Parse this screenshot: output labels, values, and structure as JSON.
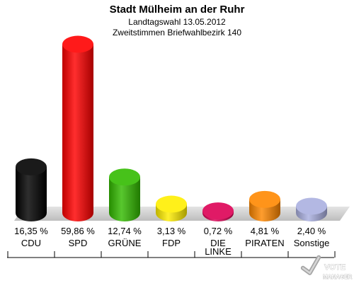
{
  "chart_data": {
    "type": "bar",
    "title": "Stadt Mülheim an der Ruhr",
    "subtitle_1": "Landtagswahl 13.05.2012",
    "subtitle_2": "Zweitstimmen Briefwahlbezirk 140",
    "categories": [
      "CDU",
      "SPD",
      "GRÜNE",
      "FDP",
      "DIE LINKE",
      "PIRATEN",
      "Sonstige"
    ],
    "category_lines": [
      [
        "CDU"
      ],
      [
        "SPD"
      ],
      [
        "GRÜNE"
      ],
      [
        "FDP"
      ],
      [
        "DIE",
        "LINKE"
      ],
      [
        "PIRATEN"
      ],
      [
        "Sonstige"
      ]
    ],
    "values": [
      16.35,
      59.86,
      12.74,
      3.13,
      0.72,
      4.81,
      2.4
    ],
    "value_labels": [
      "16,35 %",
      "59,86 %",
      "12,74 %",
      "3,13 %",
      "0,72 %",
      "4,81 %",
      "2,40 %"
    ],
    "colors": [
      "#000000",
      "#ff0000",
      "#33bb00",
      "#ffee00",
      "#dd0055",
      "#ff8800",
      "#aab0e0"
    ],
    "ylim": [
      0,
      60
    ],
    "xlabel": "",
    "ylabel": "",
    "grid": false,
    "legend": "none"
  },
  "logo": {
    "line_1": "VOTE",
    "line_2": "MANAGER"
  }
}
